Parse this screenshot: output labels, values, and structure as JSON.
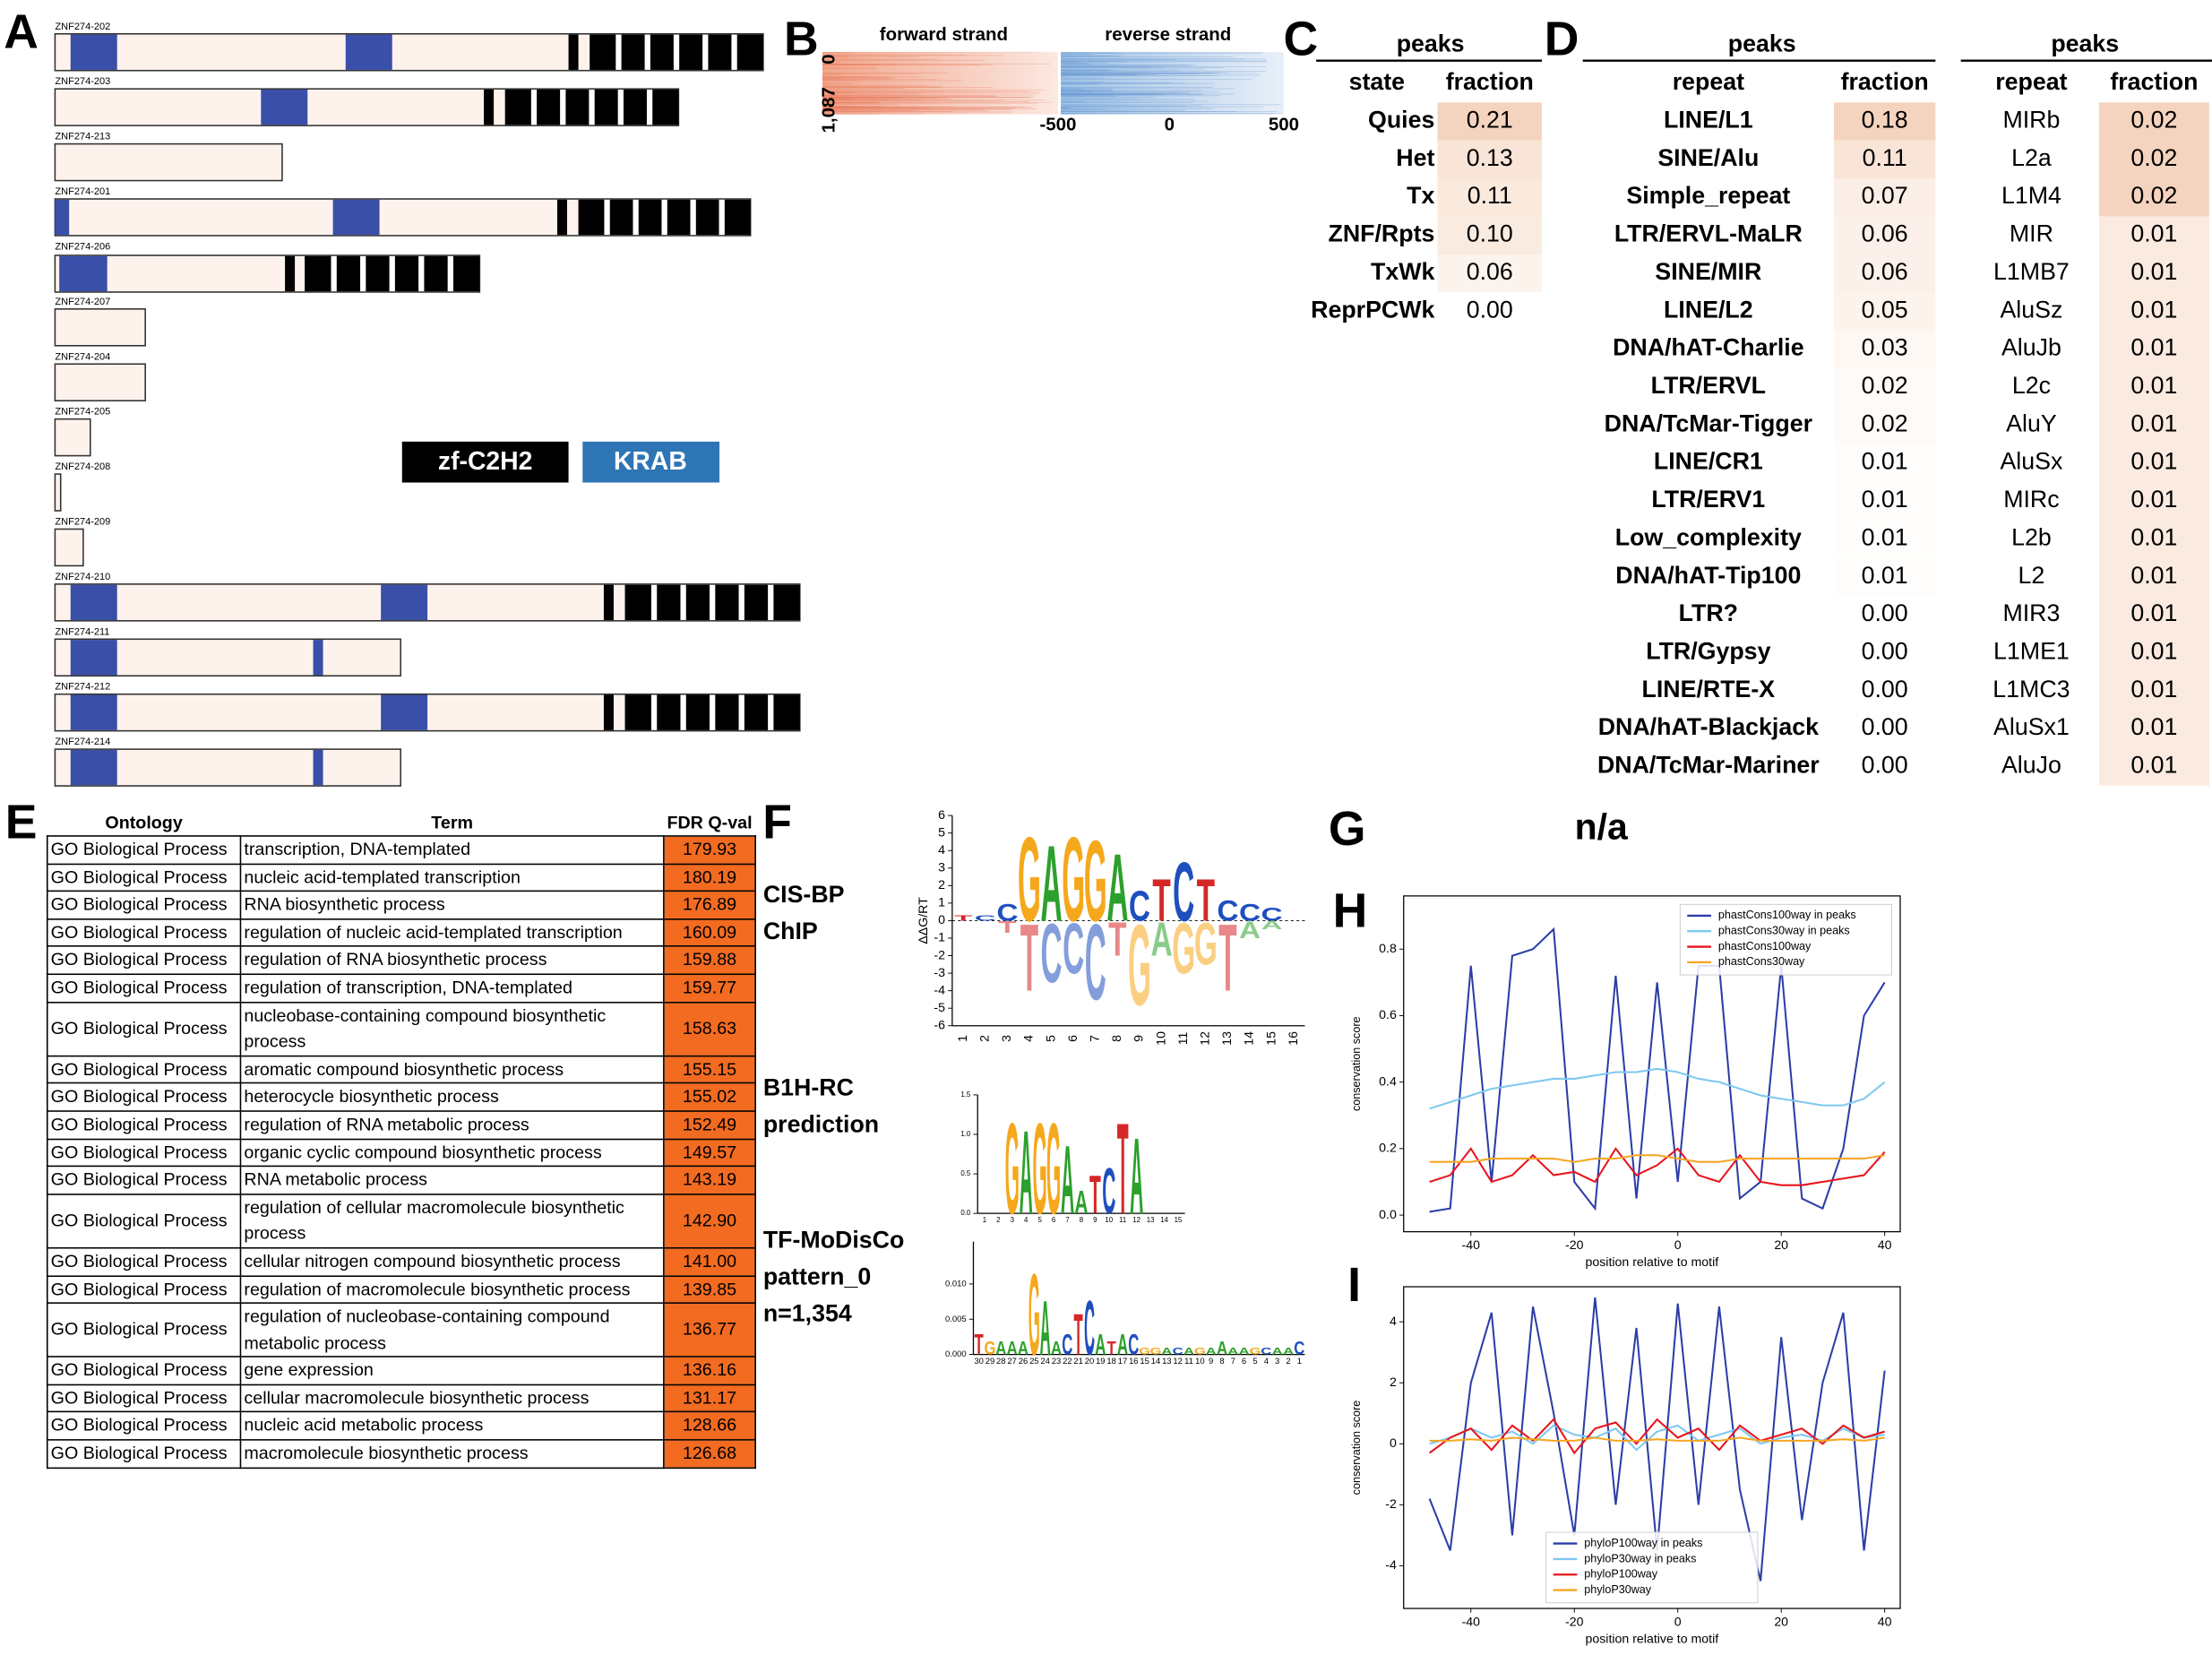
{
  "panel_labels": [
    "A",
    "B",
    "C",
    "D",
    "E",
    "F",
    "G",
    "H",
    "I"
  ],
  "panel_a": {
    "transcripts": [
      "ZNF274-202",
      "ZNF274-203",
      "ZNF274-213",
      "ZNF274-201",
      "ZNF274-206",
      "ZNF274-207",
      "ZNF274-204",
      "ZNF274-205",
      "ZNF274-208",
      "ZNF274-209",
      "ZNF274-210",
      "ZNF274-211",
      "ZNF274-212",
      "ZNF274-214"
    ],
    "legend": [
      "zf-C2H2",
      "KRAB"
    ]
  },
  "panel_b": {
    "forward_label": "forward strand",
    "reverse_label": "reverse strand",
    "y_ticks": [
      "0",
      "1,087"
    ],
    "x_ticks": [
      "-500",
      "0",
      "500"
    ]
  },
  "panel_c": {
    "tables": [
      {
        "header": "peaks",
        "columns": [
          "state",
          "fraction"
        ],
        "rows": [
          [
            "Quies",
            "0.21"
          ],
          [
            "Het",
            "0.13"
          ],
          [
            "Tx",
            "0.11"
          ],
          [
            "ZNF/Rpts",
            "0.10"
          ],
          [
            "TxWk",
            "0.06"
          ],
          [
            "ReprPCWk",
            "0.00"
          ]
        ]
      }
    ]
  },
  "panel_d": {
    "tables": [
      {
        "header": "peaks",
        "columns": [
          "repeat",
          "fraction"
        ],
        "rows": [
          [
            "LINE/L1",
            "0.18"
          ],
          [
            "SINE/Alu",
            "0.11"
          ],
          [
            "Simple_repeat",
            "0.07"
          ],
          [
            "LTR/ERVL-MaLR",
            "0.06"
          ],
          [
            "SINE/MIR",
            "0.06"
          ],
          [
            "LINE/L2",
            "0.05"
          ],
          [
            "DNA/hAT-Charlie",
            "0.03"
          ],
          [
            "LTR/ERVL",
            "0.02"
          ],
          [
            "DNA/TcMar-Tigger",
            "0.02"
          ],
          [
            "LINE/CR1",
            "0.01"
          ],
          [
            "LTR/ERV1",
            "0.01"
          ],
          [
            "Low_complexity",
            "0.01"
          ],
          [
            "DNA/hAT-Tip100",
            "0.01"
          ],
          [
            "LTR?",
            "0.00"
          ],
          [
            "LTR/Gypsy",
            "0.00"
          ],
          [
            "LINE/RTE-X",
            "0.00"
          ],
          [
            "DNA/hAT-Blackjack",
            "0.00"
          ],
          [
            "DNA/TcMar-Mariner",
            "0.00"
          ]
        ]
      },
      {
        "header": "peaks",
        "columns": [
          "repeat",
          "fraction"
        ],
        "rows": [
          [
            "MIRb",
            "0.02"
          ],
          [
            "L2a",
            "0.02"
          ],
          [
            "L1M4",
            "0.02"
          ],
          [
            "MIR",
            "0.01"
          ],
          [
            "L1MB7",
            "0.01"
          ],
          [
            "AluSz",
            "0.01"
          ],
          [
            "AluJb",
            "0.01"
          ],
          [
            "L2c",
            "0.01"
          ],
          [
            "AluY",
            "0.01"
          ],
          [
            "AluSx",
            "0.01"
          ],
          [
            "MIRc",
            "0.01"
          ],
          [
            "L2b",
            "0.01"
          ],
          [
            "L2",
            "0.01"
          ],
          [
            "MIR3",
            "0.01"
          ],
          [
            "L1ME1",
            "0.01"
          ],
          [
            "L1MC3",
            "0.01"
          ],
          [
            "AluSx1",
            "0.01"
          ],
          [
            "AluJo",
            "0.01"
          ]
        ]
      }
    ]
  },
  "panel_e": {
    "columns": [
      "Ontology",
      "Term",
      "FDR Q-val"
    ],
    "rows": [
      [
        "GO Biological Process",
        "transcription, DNA-templated",
        "179.93"
      ],
      [
        "GO Biological Process",
        "nucleic acid-templated transcription",
        "180.19"
      ],
      [
        "GO Biological Process",
        "RNA biosynthetic process",
        "176.89"
      ],
      [
        "GO Biological Process",
        "regulation of nucleic acid-templated transcription",
        "160.09"
      ],
      [
        "GO Biological Process",
        "regulation of RNA biosynthetic process",
        "159.88"
      ],
      [
        "GO Biological Process",
        "regulation of transcription, DNA-templated",
        "159.77"
      ],
      [
        "GO Biological Process",
        "nucleobase-containing compound biosynthetic process",
        "158.63"
      ],
      [
        "GO Biological Process",
        "aromatic compound biosynthetic process",
        "155.15"
      ],
      [
        "GO Biological Process",
        "heterocycle biosynthetic process",
        "155.02"
      ],
      [
        "GO Biological Process",
        "regulation of RNA metabolic process",
        "152.49"
      ],
      [
        "GO Biological Process",
        "organic cyclic compound biosynthetic process",
        "149.57"
      ],
      [
        "GO Biological Process",
        "RNA metabolic process",
        "143.19"
      ],
      [
        "GO Biological Process",
        "regulation of cellular macromolecule biosynthetic process",
        "142.90"
      ],
      [
        "GO Biological Process",
        "cellular nitrogen compound biosynthetic process",
        "141.00"
      ],
      [
        "GO Biological Process",
        "regulation of macromolecule biosynthetic process",
        "139.85"
      ],
      [
        "GO Biological Process",
        "regulation of nucleobase-containing compound metabolic process",
        "136.77"
      ],
      [
        "GO Biological Process",
        "gene expression",
        "136.16"
      ],
      [
        "GO Biological Process",
        "cellular macromolecule biosynthetic process",
        "131.17"
      ],
      [
        "GO Biological Process",
        "nucleic acid metabolic process",
        "128.66"
      ],
      [
        "GO Biological Process",
        "macromolecule biosynthetic process",
        "126.68"
      ]
    ]
  },
  "panel_f": {
    "labels": [
      [
        "CIS-BP",
        "ChIP"
      ],
      [
        "B1H-RC",
        "prediction"
      ],
      [
        "TF-MoDisCo",
        "pattern_0",
        "n=1,354"
      ]
    ],
    "letter_colors": {
      "A": "#2ca02c",
      "C": "#1f4fbf",
      "G": "#f5a81c",
      "T": "#d62728"
    },
    "logos": [
      {
        "ylabel": "ΔΔG/RT",
        "ylim": [
          -6,
          6
        ],
        "yticks": [
          6,
          5,
          4,
          3,
          2,
          1,
          0,
          -1,
          -2,
          -3,
          -4,
          -5,
          -6
        ],
        "xticks": [
          1,
          2,
          3,
          4,
          5,
          6,
          7,
          8,
          9,
          10,
          11,
          12,
          13,
          14,
          15,
          16
        ],
        "letters": [
          "T",
          "C",
          "C",
          "G",
          "A",
          "G",
          "G",
          "A",
          "C",
          "T",
          "C",
          "T",
          "C",
          "C",
          "C",
          null
        ],
        "heights": [
          0.3,
          0.3,
          1.0,
          5.0,
          4.5,
          5.0,
          4.8,
          4.0,
          1.8,
          2.5,
          3.5,
          2.5,
          1.2,
          1.0,
          0.8,
          null
        ],
        "neg_letters": [
          null,
          null,
          "T",
          "T",
          "C",
          "C",
          "C",
          "T",
          "G",
          "A",
          "G",
          "G",
          "T",
          "A",
          "A",
          null
        ],
        "neg_heights": [
          null,
          null,
          -0.7,
          -4.0,
          -3.5,
          -3.0,
          -4.5,
          -2.0,
          -4.8,
          -2.0,
          -3.0,
          -2.5,
          -4.0,
          -1.0,
          -0.5,
          null
        ]
      },
      {
        "ylim": [
          0,
          1.5
        ],
        "yticks": [
          {
            "value": 0,
            "label": "0.0"
          },
          {
            "value": 0.5,
            "label": "0.5"
          },
          {
            "value": 1,
            "label": "1.0"
          },
          {
            "value": 1.5,
            "label": "1.5"
          }
        ],
        "xticks": [
          1,
          2,
          3,
          4,
          5,
          6,
          7,
          8,
          9,
          10,
          11,
          12,
          13,
          14,
          15
        ],
        "letters": [
          null,
          null,
          "G",
          "A",
          "G",
          "G",
          "A",
          "A",
          "T",
          "C",
          "T",
          "A",
          null,
          null,
          null
        ],
        "heights": [
          null,
          null,
          1.2,
          1.1,
          1.2,
          1.2,
          0.9,
          0.3,
          0.5,
          0.6,
          1.2,
          1.0,
          null,
          null,
          null
        ]
      },
      {
        "ylim": [
          0,
          0.016
        ],
        "yticks": [
          {
            "value": 0,
            "label": "0.000"
          },
          {
            "value": 0.005,
            "label": "0.005"
          },
          {
            "value": 0.01,
            "label": "0.010"
          }
        ],
        "xticks": [
          30,
          29,
          28,
          27,
          26,
          25,
          24,
          23,
          22,
          21,
          20,
          19,
          18,
          17,
          16,
          15,
          14,
          13,
          12,
          11,
          10,
          9,
          8,
          7,
          6,
          5,
          4,
          3,
          2,
          1
        ],
        "letters": [
          "T",
          "G",
          "A",
          "A",
          "A",
          "G",
          "A",
          "A",
          "C",
          "T",
          "C",
          "A",
          "T",
          "A",
          "C",
          "G",
          "G",
          "A",
          "C",
          "A",
          "G",
          "A",
          "A",
          "A",
          "A",
          "G",
          "C",
          "A",
          "A",
          "C"
        ],
        "heights": [
          0.003,
          0.002,
          0.002,
          0.002,
          0.002,
          0.012,
          0.008,
          0.002,
          0.003,
          0.006,
          0.008,
          0.003,
          0.002,
          0.003,
          0.003,
          0.001,
          0.001,
          0.001,
          0.001,
          0.001,
          0.001,
          0.001,
          0.002,
          0.001,
          0.001,
          0.001,
          0.001,
          0.001,
          0.001,
          0.002
        ]
      }
    ]
  },
  "panel_g": {
    "text": "n/a"
  },
  "chart_data": [
    {
      "type": "line",
      "xlabel": "position relative to motif",
      "ylabel": "conservation score",
      "legend": "upper right",
      "x": [
        -48,
        -44,
        -40,
        -36,
        -32,
        -28,
        -24,
        -20,
        -16,
        -12,
        -8,
        -4,
        0,
        4,
        8,
        12,
        16,
        20,
        24,
        28,
        32,
        36,
        40
      ],
      "xlim": [
        -53,
        43
      ],
      "xticks": [
        -40,
        -20,
        0,
        20,
        40
      ],
      "ylim": [
        -0.05,
        0.96
      ],
      "yticks": [
        {
          "value": 0,
          "label": "0.0"
        },
        {
          "value": 0.2,
          "label": "0.2"
        },
        {
          "value": 0.4,
          "label": "0.4"
        },
        {
          "value": 0.6,
          "label": "0.6"
        },
        {
          "value": 0.8,
          "label": "0.8"
        }
      ],
      "series": [
        {
          "name": "phastCons100way in peaks",
          "color": "#2b3ea8",
          "values": [
            0.01,
            0.02,
            0.75,
            0.1,
            0.78,
            0.8,
            0.86,
            0.1,
            0.02,
            0.72,
            0.05,
            0.7,
            0.1,
            0.75,
            0.75,
            0.05,
            0.1,
            0.75,
            0.05,
            0.02,
            0.2,
            0.6,
            0.7
          ]
        },
        {
          "name": "phastCons30way in peaks",
          "color": "#7ec8f0",
          "values": [
            0.32,
            0.34,
            0.36,
            0.38,
            0.39,
            0.4,
            0.41,
            0.41,
            0.42,
            0.43,
            0.43,
            0.44,
            0.43,
            0.41,
            0.4,
            0.38,
            0.36,
            0.35,
            0.34,
            0.33,
            0.33,
            0.35,
            0.4
          ]
        },
        {
          "name": "phastCons100way",
          "color": "#e8141c",
          "values": [
            0.1,
            0.12,
            0.2,
            0.1,
            0.12,
            0.18,
            0.12,
            0.13,
            0.1,
            0.2,
            0.12,
            0.15,
            0.2,
            0.12,
            0.1,
            0.18,
            0.1,
            0.09,
            0.09,
            0.1,
            0.11,
            0.12,
            0.19
          ]
        },
        {
          "name": "phastCons30way",
          "color": "#f5a623",
          "values": [
            0.16,
            0.16,
            0.16,
            0.17,
            0.17,
            0.17,
            0.17,
            0.16,
            0.17,
            0.17,
            0.18,
            0.18,
            0.17,
            0.16,
            0.16,
            0.17,
            0.17,
            0.17,
            0.17,
            0.17,
            0.17,
            0.17,
            0.18
          ]
        }
      ]
    },
    {
      "type": "line",
      "xlabel": "position relative to motif",
      "ylabel": "conservation score",
      "legend": "lower center",
      "x": [
        -48,
        -44,
        -40,
        -36,
        -32,
        -28,
        -24,
        -20,
        -16,
        -12,
        -8,
        -4,
        0,
        4,
        8,
        12,
        16,
        20,
        24,
        28,
        32,
        36,
        40
      ],
      "xlim": [
        -53,
        43
      ],
      "xticks": [
        -40,
        -20,
        0,
        20,
        40
      ],
      "ylim": [
        -5.4,
        5.15
      ],
      "yticks": [
        -4,
        -2,
        0,
        2,
        4
      ],
      "series": [
        {
          "name": "phyloP100way in peaks",
          "color": "#2b3ea8",
          "values": [
            -1.8,
            -3.5,
            2,
            4.3,
            -3,
            4.5,
            1,
            -3,
            4.8,
            -2,
            3.8,
            -3.5,
            4.6,
            -2,
            4.5,
            -1.5,
            -4.5,
            3.5,
            -2.5,
            2,
            4.3,
            -3.5,
            2.4
          ]
        },
        {
          "name": "phyloP30way in peaks",
          "color": "#7ec8f0",
          "values": [
            0,
            0.2,
            0.5,
            0.2,
            0.4,
            0,
            0.6,
            0.3,
            0.2,
            0.5,
            -0.2,
            0.4,
            0.6,
            0.1,
            0.3,
            0.5,
            0,
            0.2,
            0.3,
            0.1,
            0.5,
            0.2,
            0.3
          ]
        },
        {
          "name": "phyloP100way",
          "color": "#e8141c",
          "values": [
            -0.3,
            0.2,
            0.5,
            -0.2,
            0.6,
            0.1,
            0.8,
            -0.3,
            0.5,
            0.7,
            0,
            0.8,
            0.2,
            0.5,
            -0.2,
            0.6,
            0.1,
            0.3,
            0.5,
            0,
            0.6,
            0.2,
            0.4
          ]
        },
        {
          "name": "phyloP30way",
          "color": "#f5a623",
          "values": [
            0.1,
            0.1,
            0.15,
            0.1,
            0.2,
            0.15,
            0.1,
            0.1,
            0.2,
            0.1,
            0.1,
            0.15,
            0.1,
            0.1,
            0.1,
            0.2,
            0.1,
            0.1,
            0.1,
            0.1,
            0.15,
            0.1,
            0.2
          ]
        }
      ]
    }
  ]
}
